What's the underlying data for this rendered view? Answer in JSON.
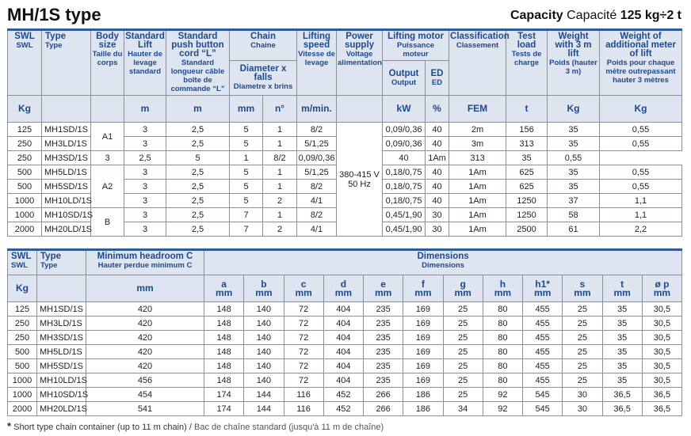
{
  "title": "MH/1S type",
  "capacity": {
    "label_en": "Capacity",
    "label_fr": "Capacité",
    "value": "125 kg÷2 t"
  },
  "table1": {
    "headers": {
      "swl": [
        "SWL",
        "SWL"
      ],
      "type": [
        "Type",
        "Type"
      ],
      "body": [
        "Body size",
        "Taille du corps"
      ],
      "lift": [
        "Standard Lift",
        "Hauter de levage standard"
      ],
      "cord": [
        "Standard push button cord “L”",
        "Standard longueur câble boîte de commande “L”"
      ],
      "chain": [
        "Chain",
        "Chaine"
      ],
      "chain_sub": [
        "Diameter x falls",
        "Diametre x brins"
      ],
      "speed": [
        "Lifting speed",
        "Vitesse de levage"
      ],
      "power": [
        "Power supply",
        "Voltage alimentation"
      ],
      "motor": [
        "Lifting motor",
        "Puissance moteur"
      ],
      "output": [
        "Output",
        "Output"
      ],
      "ed": [
        "ED",
        "ED"
      ],
      "class": [
        "Classification",
        "Classement"
      ],
      "test": [
        "Test load",
        "Tests de charge"
      ],
      "weight": [
        "Weight with 3 m lift",
        "Poids (hauter 3 m)"
      ],
      "add": [
        "Weight of additional meter of lift",
        "Poids pour chaque mètre outrepassant hauter 3 mètres"
      ]
    },
    "units": [
      "Kg",
      "",
      "",
      "m",
      "m",
      "mm",
      "n°",
      "m/min.",
      "",
      "kW",
      "%",
      "FEM",
      "t",
      "Kg",
      "Kg"
    ],
    "body_sizes": [
      "A1",
      "A2",
      "B"
    ],
    "power_supply": [
      "380-415 V",
      "50 Hz"
    ],
    "rows": [
      [
        "125",
        "MH1SD/1S",
        "3",
        "2,5",
        "5",
        "1",
        "8/2",
        "0,09/0,36",
        "40",
        "2m",
        "156",
        "35",
        "0,55"
      ],
      [
        "250",
        "MH3LD/1S",
        "3",
        "2,5",
        "5",
        "1",
        "5/1,25",
        "0,09/0,36",
        "40",
        "3m",
        "313",
        "35",
        "0,55"
      ],
      [
        "250",
        "MH3SD/1S",
        "3",
        "2,5",
        "5",
        "1",
        "8/2",
        "0,09/0,36",
        "40",
        "1Am",
        "313",
        "35",
        "0,55"
      ],
      [
        "500",
        "MH5LD/1S",
        "3",
        "2,5",
        "5",
        "1",
        "5/1,25",
        "0,18/0,75",
        "40",
        "1Am",
        "625",
        "35",
        "0,55"
      ],
      [
        "500",
        "MH5SD/1S",
        "3",
        "2,5",
        "5",
        "1",
        "8/2",
        "0,18/0,75",
        "40",
        "1Am",
        "625",
        "35",
        "0,55"
      ],
      [
        "1000",
        "MH10LD/1S",
        "3",
        "2,5",
        "5",
        "2",
        "4/1",
        "0,18/0,75",
        "40",
        "1Am",
        "1250",
        "37",
        "1,1"
      ],
      [
        "1000",
        "MH10SD/1S",
        "3",
        "2,5",
        "7",
        "1",
        "8/2",
        "0,45/1,90",
        "30",
        "1Am",
        "1250",
        "58",
        "1,1"
      ],
      [
        "2000",
        "MH20LD/1S",
        "3",
        "2,5",
        "7",
        "2",
        "4/1",
        "0,45/1,90",
        "30",
        "1Am",
        "2500",
        "61",
        "2,2"
      ]
    ]
  },
  "table2": {
    "headers": {
      "swl": [
        "SWL",
        "SWL"
      ],
      "type": [
        "Type",
        "Type"
      ],
      "headroom": [
        "Minimum headroom C",
        "Hauter perdue minimum C"
      ],
      "dims": [
        "Dimensions",
        "Dimensions"
      ]
    },
    "units": {
      "swl": "Kg",
      "headroom": "mm"
    },
    "dim_cols": [
      [
        "a",
        "mm"
      ],
      [
        "b",
        "mm"
      ],
      [
        "c",
        "mm"
      ],
      [
        "d",
        "mm"
      ],
      [
        "e",
        "mm"
      ],
      [
        "f",
        "mm"
      ],
      [
        "g",
        "mm"
      ],
      [
        "h",
        "mm"
      ],
      [
        "h1*",
        "mm"
      ],
      [
        "s",
        "mm"
      ],
      [
        "t",
        "mm"
      ],
      [
        "ø p",
        "mm"
      ]
    ],
    "rows": [
      [
        "125",
        "MH1SD/1S",
        "420",
        "148",
        "140",
        "72",
        "404",
        "235",
        "169",
        "25",
        "80",
        "455",
        "25",
        "35",
        "30,5"
      ],
      [
        "250",
        "MH3LD/1S",
        "420",
        "148",
        "140",
        "72",
        "404",
        "235",
        "169",
        "25",
        "80",
        "455",
        "25",
        "35",
        "30,5"
      ],
      [
        "250",
        "MH3SD/1S",
        "420",
        "148",
        "140",
        "72",
        "404",
        "235",
        "169",
        "25",
        "80",
        "455",
        "25",
        "35",
        "30,5"
      ],
      [
        "500",
        "MH5LD/1S",
        "420",
        "148",
        "140",
        "72",
        "404",
        "235",
        "169",
        "25",
        "80",
        "455",
        "25",
        "35",
        "30,5"
      ],
      [
        "500",
        "MH5SD/1S",
        "420",
        "148",
        "140",
        "72",
        "404",
        "235",
        "169",
        "25",
        "80",
        "455",
        "25",
        "35",
        "30,5"
      ],
      [
        "1000",
        "MH10LD/1S",
        "456",
        "148",
        "140",
        "72",
        "404",
        "235",
        "169",
        "25",
        "80",
        "455",
        "25",
        "35",
        "30,5"
      ],
      [
        "1000",
        "MH10SD/1S",
        "454",
        "174",
        "144",
        "116",
        "452",
        "266",
        "186",
        "25",
        "92",
        "545",
        "30",
        "36,5",
        "36,5"
      ],
      [
        "2000",
        "MH20LD/1S",
        "541",
        "174",
        "144",
        "116",
        "452",
        "266",
        "186",
        "34",
        "92",
        "545",
        "30",
        "36,5",
        "36,5"
      ]
    ]
  },
  "footnote": {
    "star": "*",
    "en": "Short type chain container (up to 11 m chain)",
    "sep": " / ",
    "fr": "Bac de chaîne standard (jusqu'à 11 m de chaîne)"
  }
}
